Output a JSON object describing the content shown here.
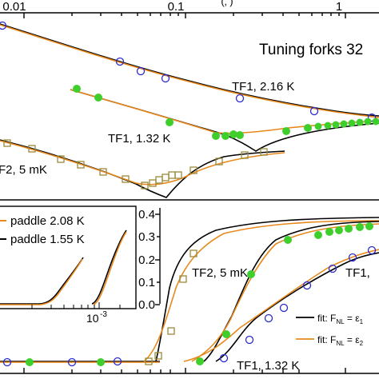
{
  "top_panel": {
    "x_ticks": [
      "0.01",
      "0.1",
      "1"
    ],
    "x_top_label_fragment": "(‚ )",
    "title_fragment": "Tuning forks 32",
    "labels": [
      "TF1, 2.16 K",
      "TF1, 1.32 K",
      "F2, 5 mK"
    ]
  },
  "bottom_panel": {
    "y_ticks": [
      "0.0",
      "0.1",
      "0.2",
      "0.3",
      "0.4"
    ],
    "labels": [
      "TF2, 5 mK",
      "TF1, 1.32 K",
      "TF1,"
    ],
    "legend": [
      {
        "label": "fit: F",
        "sub": "NL",
        "tail": " = ε",
        "sub2": "1"
      },
      {
        "label": "fit: F",
        "sub": "NL",
        "tail": " = ε",
        "sub2": "2"
      }
    ]
  },
  "inset": {
    "legend": [
      "paddle 2.08 K",
      "paddle 1.55 K"
    ],
    "x_tick": "10",
    "x_tick_exp": "-3"
  },
  "colors": {
    "orange": "#e8891c",
    "black": "#000000",
    "blue_marker": "#2a2ad0",
    "green_marker": "#3ecf2c",
    "olive_marker": "#9a8a3a"
  },
  "chart_data": [
    {
      "type": "line",
      "panel": "top",
      "xscale": "log",
      "xticks": [
        0.01,
        0.1,
        1
      ],
      "series": [
        {
          "name": "TF1, 2.16 K",
          "marker": "open-circle",
          "x": [
            0.01,
            0.04,
            0.07,
            0.12,
            0.2,
            0.35,
            0.6,
            0.9,
            1.3
          ],
          "y": [
            1.0,
            0.82,
            0.74,
            0.67,
            0.6,
            0.52,
            0.46,
            0.42,
            0.4
          ]
        },
        {
          "name": "TF1, 1.32 K",
          "marker": "filled-circle",
          "x": [
            0.03,
            0.05,
            0.09,
            0.18,
            0.28,
            0.42,
            0.6,
            0.9,
            1.4
          ],
          "y": [
            0.72,
            0.66,
            0.55,
            0.42,
            0.33,
            0.3,
            0.31,
            0.33,
            0.35
          ]
        },
        {
          "name": "F2, 5 mK",
          "marker": "open-square",
          "x": [
            0.004,
            0.008,
            0.015,
            0.025,
            0.04,
            0.055,
            0.075,
            0.1,
            0.15,
            0.25,
            0.35,
            0.45
          ],
          "y": [
            0.45,
            0.4,
            0.35,
            0.3,
            0.24,
            0.2,
            0.16,
            0.15,
            0.16,
            0.2,
            0.23,
            0.24
          ]
        }
      ]
    },
    {
      "type": "line",
      "panel": "bottom",
      "ylim": [
        0,
        0.4
      ],
      "yticks": [
        0.0,
        0.1,
        0.2,
        0.3,
        0.4
      ],
      "series": [
        {
          "name": "TF2, 5 mK",
          "marker": "open-square",
          "x": [
            0.05,
            0.07,
            0.09,
            0.12,
            0.18,
            0.3,
            0.6,
            1.0
          ],
          "y": [
            0.0,
            0.05,
            0.16,
            0.25,
            0.3,
            0.34,
            0.37,
            0.38
          ]
        },
        {
          "name": "TF1, 1.32 K",
          "marker": "filled-circle",
          "x": [
            0.15,
            0.2,
            0.25,
            0.3,
            0.4,
            0.6,
            0.9,
            1.2
          ],
          "y": [
            0.0,
            0.02,
            0.1,
            0.17,
            0.25,
            0.31,
            0.35,
            0.36
          ]
        },
        {
          "name": "TF1,",
          "marker": "open-circle",
          "x": [
            0.2,
            0.3,
            0.45,
            0.6,
            0.8,
            1.1,
            1.5
          ],
          "y": [
            0.0,
            0.02,
            0.06,
            0.1,
            0.14,
            0.18,
            0.21
          ]
        }
      ]
    }
  ]
}
